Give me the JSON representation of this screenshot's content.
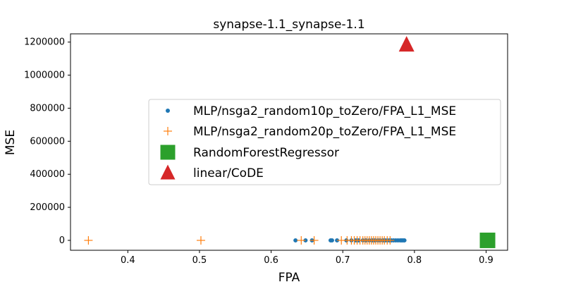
{
  "chart_data": {
    "type": "scatter",
    "title": "synapse-1.1_synapse-1.1",
    "xlabel": "FPA",
    "ylabel": "MSE",
    "xlim": [
      0.32,
      0.93
    ],
    "ylim": [
      -60000,
      1250000
    ],
    "xticks": [
      0.4,
      0.5,
      0.6,
      0.7,
      0.8,
      0.9
    ],
    "xtick_labels": [
      "0.4",
      "0.5",
      "0.6",
      "0.7",
      "0.8",
      "0.9"
    ],
    "yticks": [
      0,
      200000,
      400000,
      600000,
      800000,
      1000000,
      1200000
    ],
    "ytick_labels": [
      "0",
      "200000",
      "400000",
      "600000",
      "800000",
      "1000000",
      "1200000"
    ],
    "grid": false,
    "legend_position": "center-right",
    "series": [
      {
        "name": "MLP/nsga2_random10p_toZero/FPA_L1_MSE",
        "marker": "circle",
        "color": "#1f77b4",
        "points": [
          [
            0.634,
            0
          ],
          [
            0.648,
            0
          ],
          [
            0.657,
            0
          ],
          [
            0.683,
            0
          ],
          [
            0.685,
            0
          ],
          [
            0.692,
            0
          ],
          [
            0.705,
            0
          ],
          [
            0.712,
            0
          ],
          [
            0.718,
            0
          ],
          [
            0.722,
            0
          ],
          [
            0.728,
            0
          ],
          [
            0.732,
            0
          ],
          [
            0.737,
            0
          ],
          [
            0.741,
            0
          ],
          [
            0.745,
            0
          ],
          [
            0.749,
            0
          ],
          [
            0.752,
            0
          ],
          [
            0.756,
            0
          ],
          [
            0.759,
            0
          ],
          [
            0.762,
            0
          ],
          [
            0.765,
            0
          ],
          [
            0.768,
            0
          ],
          [
            0.771,
            0
          ],
          [
            0.774,
            0
          ],
          [
            0.777,
            0
          ],
          [
            0.78,
            0
          ],
          [
            0.782,
            0
          ],
          [
            0.784,
            0
          ],
          [
            0.786,
            0
          ]
        ]
      },
      {
        "name": "MLP/nsga2_random20p_toZero/FPA_L1_MSE",
        "marker": "plus",
        "color": "#ff7f0e",
        "points": [
          [
            0.345,
            0
          ],
          [
            0.502,
            0
          ],
          [
            0.642,
            0
          ],
          [
            0.66,
            0
          ],
          [
            0.698,
            0
          ],
          [
            0.706,
            0
          ],
          [
            0.712,
            0
          ],
          [
            0.716,
            0
          ],
          [
            0.72,
            0
          ],
          [
            0.724,
            0
          ],
          [
            0.728,
            0
          ],
          [
            0.731,
            0
          ],
          [
            0.734,
            0
          ],
          [
            0.737,
            0
          ],
          [
            0.74,
            0
          ],
          [
            0.743,
            0
          ],
          [
            0.746,
            0
          ],
          [
            0.749,
            0
          ],
          [
            0.752,
            0
          ],
          [
            0.755,
            0
          ],
          [
            0.758,
            0
          ],
          [
            0.762,
            0
          ],
          [
            0.766,
            0
          ]
        ]
      },
      {
        "name": "RandomForestRegressor",
        "marker": "square",
        "color": "#2ca02c",
        "points": [
          [
            0.902,
            0
          ]
        ]
      },
      {
        "name": "linear/CoDE",
        "marker": "triangle",
        "color": "#d62728",
        "points": [
          [
            0.789,
            1185000
          ]
        ]
      }
    ]
  }
}
